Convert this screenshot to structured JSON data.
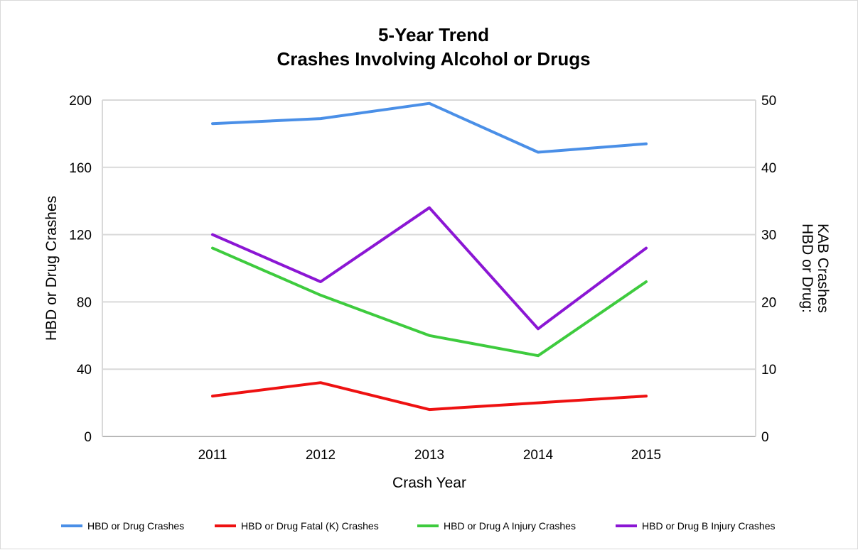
{
  "chart_data": {
    "type": "line",
    "title_lines": [
      "5-Year Trend",
      "Crashes Involving Alcohol or Drugs"
    ],
    "xlabel": "Crash Year",
    "ylabel_left": "HBD or Drug Crashes",
    "ylabel_right_lines": [
      "HBD or Drug:",
      "KAB Crashes"
    ],
    "categories": [
      "2011",
      "2012",
      "2013",
      "2014",
      "2015"
    ],
    "y_left": {
      "min": 0,
      "max": 200,
      "ticks": [
        "0",
        "40",
        "80",
        "120",
        "160",
        "200"
      ]
    },
    "y_right": {
      "min": 0,
      "max": 50,
      "ticks": [
        "0",
        "10",
        "20",
        "30",
        "40",
        "50"
      ]
    },
    "grid": true,
    "legend_position": "bottom",
    "series": [
      {
        "name": "HBD or Drug Crashes",
        "axis": "left",
        "color": "#4a8fe7",
        "values": [
          186,
          189,
          198,
          169,
          174
        ]
      },
      {
        "name": "HBD or Drug Fatal (K) Crashes",
        "axis": "right",
        "color": "#ee1111",
        "values": [
          6,
          8,
          4,
          5,
          6
        ]
      },
      {
        "name": "HBD or Drug A Injury Crashes",
        "axis": "right",
        "color": "#3ecb3e",
        "values": [
          28,
          21,
          15,
          12,
          23
        ]
      },
      {
        "name": "HBD or Drug B Injury Crashes",
        "axis": "right",
        "color": "#8b16d4",
        "values": [
          30,
          23,
          34,
          16,
          28
        ]
      }
    ]
  }
}
